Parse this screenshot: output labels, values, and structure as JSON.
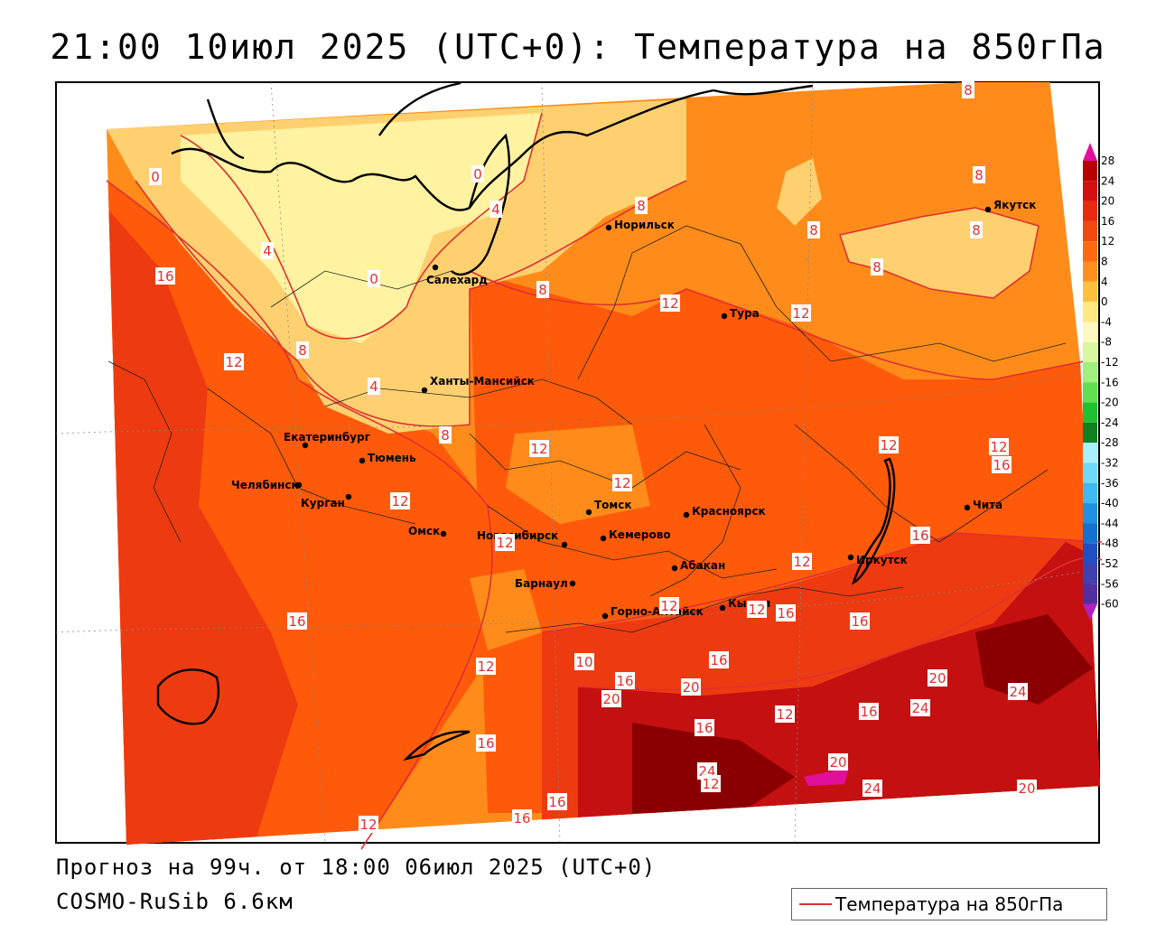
{
  "title": "21:00 10июл 2025 (UTC+0): Температура на 850гПа",
  "forecast_line": "Прогноз на 99ч. от 18:00 06июл 2025 (UTC+0)",
  "model_line": "COSMO-RuSib 6.6км",
  "legend_label": "Температура на 850гПа",
  "colors": {
    "ocean_lines": "#000000",
    "isotherm": "#e03030",
    "band_0_4": "#fff2a0",
    "band_4_8": "#ffd070",
    "band_8_12": "#ff8c1a",
    "band_12_16": "#ff5a0a",
    "band_16_20": "#ee3a10",
    "band_20_24": "#c41010",
    "band_24_28": "#8a0000",
    "band_28": "#e0109a"
  },
  "colorbar": {
    "ticks": [
      "28",
      "24",
      "20",
      "16",
      "12",
      "8",
      "4",
      "0",
      "-4",
      "-8",
      "-12",
      "-16",
      "-20",
      "-24",
      "-28",
      "-32",
      "-36",
      "-40",
      "-44",
      "-48",
      "-52",
      "-56",
      "-60"
    ],
    "colors": [
      "#b80000",
      "#d21010",
      "#e82a10",
      "#f04a10",
      "#ff6a10",
      "#ff9020",
      "#ffc040",
      "#ffe880",
      "#fff8c0",
      "#d8f8a0",
      "#a0f080",
      "#60e050",
      "#20c030",
      "#108020",
      "#a8f0ff",
      "#70d8f8",
      "#40b8f0",
      "#2090e0",
      "#1870d0",
      "#2050c0",
      "#4040b0",
      "#5030a0",
      "#301080"
    ]
  },
  "cities": [
    {
      "name": "Норильск"
    },
    {
      "name": "Салехард"
    },
    {
      "name": "Якутск"
    },
    {
      "name": "Тура"
    },
    {
      "name": "Ханты-Мансийск"
    },
    {
      "name": "Екатеринбург"
    },
    {
      "name": "Тюмень"
    },
    {
      "name": "Челябинск"
    },
    {
      "name": "Курган"
    },
    {
      "name": "Омск"
    },
    {
      "name": "Новосибирск"
    },
    {
      "name": "Томск"
    },
    {
      "name": "Кемерово"
    },
    {
      "name": "Красноярск"
    },
    {
      "name": "Абакан"
    },
    {
      "name": "Барнаул"
    },
    {
      "name": "Горно-Алтайск"
    },
    {
      "name": "Кызыл"
    },
    {
      "name": "Иркутск"
    },
    {
      "name": "Чита"
    }
  ],
  "isotherm_labels": [
    "8",
    "0",
    "0",
    "4",
    "8",
    "4",
    "0",
    "8",
    "16",
    "8",
    "8",
    "8",
    "12",
    "12",
    "8",
    "8",
    "12",
    "4",
    "8",
    "12",
    "12",
    "16",
    "12",
    "12",
    "12",
    "16",
    "12",
    "12",
    "12",
    "12",
    "16",
    "16",
    "16",
    "16",
    "12",
    "10",
    "20",
    "16",
    "20",
    "12",
    "16",
    "20",
    "24",
    "16",
    "24",
    "16",
    "24",
    "20",
    "24",
    "20",
    "16",
    "16",
    "12",
    "12"
  ]
}
